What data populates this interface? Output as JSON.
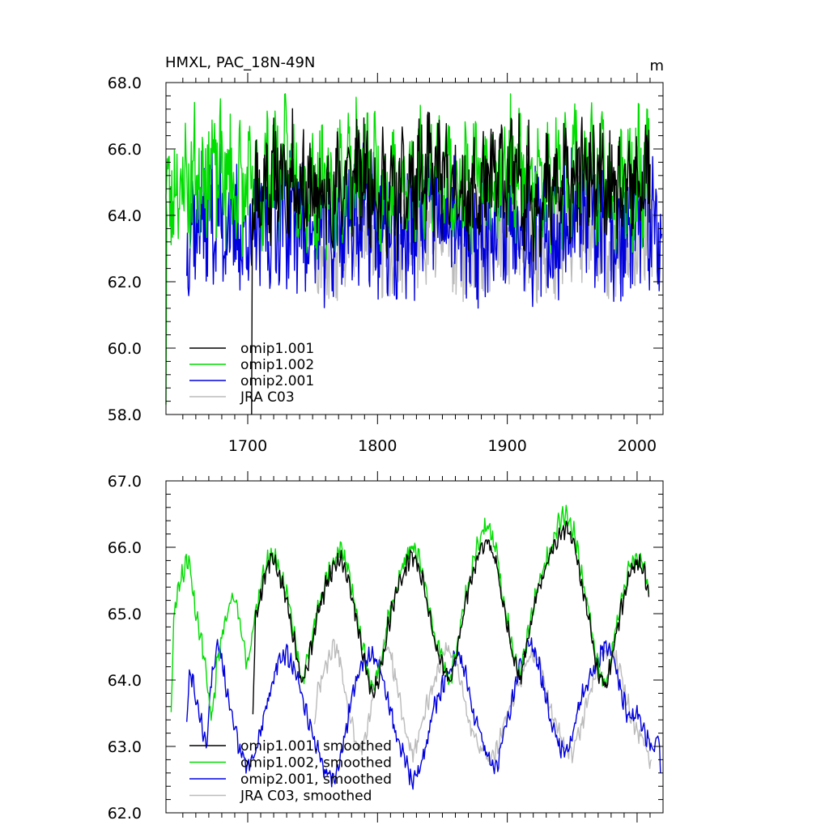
{
  "chart_data": [
    {
      "type": "line",
      "title": "HMXL, PAC_18N-49N",
      "units": "m",
      "xlabel": "",
      "ylabel": "",
      "xlim": [
        1637,
        2020
      ],
      "ylim": [
        58.0,
        68.0
      ],
      "x_ticks": [
        1700,
        1800,
        1900,
        2000
      ],
      "x_tick_labels": [
        "1700",
        "1800",
        "1900",
        "2000"
      ],
      "y_ticks": [
        58,
        60,
        62,
        64,
        66,
        68
      ],
      "y_tick_labels": [
        "58.0",
        "60.0",
        "62.0",
        "64.0",
        "66.0",
        "68.0"
      ],
      "legend_position": "bottom-left",
      "series": [
        {
          "name": "omip1.001",
          "color": "#000000",
          "x_start": 1704,
          "x_end": 2010,
          "base": 64.9,
          "amp": 1.1,
          "noise": 0.9,
          "seed": 11,
          "bottom_series": false,
          "spike": {
            "x": 1703,
            "from": 58.0,
            "to": 64.5
          }
        },
        {
          "name": "omip1.002",
          "color": "#00dd00",
          "x_start": 1637,
          "x_end": 2010,
          "base": 65.1,
          "amp": 1.2,
          "noise": 1.0,
          "seed": 23,
          "spike": {
            "x": 1637,
            "from": 58.3,
            "to": 64.0
          }
        },
        {
          "name": "omip2.001",
          "color": "#0000dd",
          "x_start": 1653,
          "x_end": 2019,
          "base": 63.7,
          "amp": 1.0,
          "noise": 1.1,
          "seed": 37,
          "spike": null
        },
        {
          "name": "JRA C03",
          "color": "#bbbbbb",
          "x_start": 1751,
          "x_end": 2012,
          "base": 63.4,
          "amp": 0.9,
          "noise": 0.9,
          "seed": 53,
          "spike": null
        }
      ]
    },
    {
      "type": "line",
      "title": "",
      "xlim": [
        1637,
        2020
      ],
      "ylim": [
        62.0,
        67.0
      ],
      "x_ticks": [
        1700,
        1800,
        1900,
        2000
      ],
      "y_ticks": [
        62,
        63,
        64,
        65,
        66,
        67
      ],
      "y_tick_labels": [
        "62.0",
        "63.0",
        "64.0",
        "65.0",
        "66.0",
        "67.0"
      ],
      "legend_position": "bottom-left",
      "series": [
        {
          "name": "omip1.001, smoothed",
          "color": "#000000",
          "x_start": 1704,
          "x_end": 2009,
          "points": [
            [
              1704,
              63.55
            ],
            [
              1706,
              64.9
            ],
            [
              1712,
              65.5
            ],
            [
              1718,
              65.85
            ],
            [
              1724,
              65.6
            ],
            [
              1730,
              65.2
            ],
            [
              1736,
              64.6
            ],
            [
              1742,
              63.95
            ],
            [
              1748,
              64.4
            ],
            [
              1754,
              65.0
            ],
            [
              1760,
              65.4
            ],
            [
              1766,
              65.7
            ],
            [
              1772,
              65.85
            ],
            [
              1778,
              65.5
            ],
            [
              1784,
              64.9
            ],
            [
              1790,
              64.3
            ],
            [
              1796,
              63.75
            ],
            [
              1802,
              64.1
            ],
            [
              1808,
              64.8
            ],
            [
              1814,
              65.3
            ],
            [
              1820,
              65.6
            ],
            [
              1826,
              65.9
            ],
            [
              1832,
              65.7
            ],
            [
              1838,
              65.2
            ],
            [
              1844,
              64.6
            ],
            [
              1850,
              64.2
            ],
            [
              1856,
              63.95
            ],
            [
              1862,
              64.5
            ],
            [
              1868,
              65.2
            ],
            [
              1874,
              65.7
            ],
            [
              1880,
              66.0
            ],
            [
              1886,
              66.1
            ],
            [
              1892,
              65.7
            ],
            [
              1898,
              65.0
            ],
            [
              1904,
              64.4
            ],
            [
              1910,
              64.0
            ],
            [
              1916,
              64.6
            ],
            [
              1922,
              65.2
            ],
            [
              1928,
              65.6
            ],
            [
              1934,
              65.9
            ],
            [
              1940,
              66.2
            ],
            [
              1946,
              66.3
            ],
            [
              1952,
              66.0
            ],
            [
              1958,
              65.4
            ],
            [
              1964,
              64.8
            ],
            [
              1970,
              64.1
            ],
            [
              1976,
              63.85
            ],
            [
              1982,
              64.5
            ],
            [
              1988,
              65.1
            ],
            [
              1994,
              65.6
            ],
            [
              2000,
              65.8
            ],
            [
              2006,
              65.6
            ],
            [
              2009,
              65.25
            ]
          ]
        },
        {
          "name": "omip1.002, smoothed",
          "color": "#00dd00",
          "x_start": 1641,
          "x_end": 2009,
          "points": [
            [
              1641,
              63.55
            ],
            [
              1643,
              64.9
            ],
            [
              1646,
              65.4
            ],
            [
              1650,
              65.6
            ],
            [
              1654,
              65.85
            ],
            [
              1658,
              65.3
            ],
            [
              1662,
              64.8
            ],
            [
              1666,
              64.4
            ],
            [
              1670,
              63.7
            ],
            [
              1673,
              63.45
            ],
            [
              1676,
              64.2
            ],
            [
              1680,
              64.7
            ],
            [
              1684,
              65.0
            ],
            [
              1688,
              65.3
            ],
            [
              1692,
              65.1
            ],
            [
              1696,
              64.6
            ],
            [
              1700,
              64.2
            ],
            [
              1706,
              64.95
            ],
            [
              1712,
              65.6
            ],
            [
              1718,
              65.95
            ],
            [
              1724,
              65.7
            ],
            [
              1730,
              65.3
            ],
            [
              1736,
              64.7
            ],
            [
              1742,
              64.0
            ],
            [
              1748,
              64.5
            ],
            [
              1754,
              65.1
            ],
            [
              1760,
              65.5
            ],
            [
              1766,
              65.8
            ],
            [
              1772,
              66.0
            ],
            [
              1778,
              65.6
            ],
            [
              1784,
              65.0
            ],
            [
              1790,
              64.4
            ],
            [
              1796,
              63.8
            ],
            [
              1802,
              64.2
            ],
            [
              1808,
              64.9
            ],
            [
              1814,
              65.4
            ],
            [
              1820,
              65.7
            ],
            [
              1826,
              66.05
            ],
            [
              1832,
              65.85
            ],
            [
              1838,
              65.3
            ],
            [
              1844,
              64.7
            ],
            [
              1850,
              64.3
            ],
            [
              1856,
              64.0
            ],
            [
              1862,
              64.6
            ],
            [
              1868,
              65.3
            ],
            [
              1874,
              65.8
            ],
            [
              1880,
              66.2
            ],
            [
              1886,
              66.35
            ],
            [
              1892,
              65.9
            ],
            [
              1898,
              65.1
            ],
            [
              1904,
              64.5
            ],
            [
              1910,
              64.05
            ],
            [
              1916,
              64.7
            ],
            [
              1922,
              65.3
            ],
            [
              1928,
              65.7
            ],
            [
              1934,
              66.0
            ],
            [
              1940,
              66.4
            ],
            [
              1946,
              66.5
            ],
            [
              1952,
              66.2
            ],
            [
              1958,
              65.5
            ],
            [
              1964,
              64.9
            ],
            [
              1970,
              64.2
            ],
            [
              1976,
              63.9
            ],
            [
              1982,
              64.6
            ],
            [
              1988,
              65.2
            ],
            [
              1994,
              65.7
            ],
            [
              2000,
              65.8
            ],
            [
              2006,
              65.7
            ],
            [
              2009,
              65.3
            ]
          ]
        },
        {
          "name": "omip2.001, smoothed",
          "color": "#0000dd",
          "x_start": 1653,
          "x_end": 2018,
          "points": [
            [
              1653,
              63.4
            ],
            [
              1655,
              64.2
            ],
            [
              1660,
              63.8
            ],
            [
              1665,
              63.3
            ],
            [
              1668,
              63.0
            ],
            [
              1672,
              64.0
            ],
            [
              1676,
              64.55
            ],
            [
              1680,
              64.3
            ],
            [
              1684,
              63.8
            ],
            [
              1688,
              63.4
            ],
            [
              1692,
              63.1
            ],
            [
              1696,
              62.9
            ],
            [
              1700,
              62.7
            ],
            [
              1706,
              62.9
            ],
            [
              1712,
              63.4
            ],
            [
              1718,
              63.9
            ],
            [
              1724,
              64.3
            ],
            [
              1730,
              64.4
            ],
            [
              1736,
              64.2
            ],
            [
              1742,
              63.7
            ],
            [
              1748,
              63.3
            ],
            [
              1754,
              63.0
            ],
            [
              1760,
              62.6
            ],
            [
              1766,
              62.5
            ],
            [
              1772,
              62.9
            ],
            [
              1778,
              63.5
            ],
            [
              1784,
              64.0
            ],
            [
              1790,
              64.3
            ],
            [
              1796,
              64.4
            ],
            [
              1802,
              64.2
            ],
            [
              1808,
              63.7
            ],
            [
              1814,
              63.2
            ],
            [
              1820,
              62.9
            ],
            [
              1826,
              62.5
            ],
            [
              1832,
              62.6
            ],
            [
              1838,
              63.1
            ],
            [
              1844,
              63.6
            ],
            [
              1850,
              63.9
            ],
            [
              1856,
              64.2
            ],
            [
              1862,
              64.4
            ],
            [
              1868,
              64.1
            ],
            [
              1874,
              63.5
            ],
            [
              1880,
              63.1
            ],
            [
              1886,
              62.8
            ],
            [
              1892,
              62.7
            ],
            [
              1898,
              63.2
            ],
            [
              1904,
              63.7
            ],
            [
              1910,
              64.2
            ],
            [
              1916,
              64.5
            ],
            [
              1922,
              64.4
            ],
            [
              1928,
              63.9
            ],
            [
              1934,
              63.4
            ],
            [
              1940,
              63.0
            ],
            [
              1946,
              62.9
            ],
            [
              1952,
              63.3
            ],
            [
              1958,
              63.8
            ],
            [
              1964,
              64.1
            ],
            [
              1970,
              64.3
            ],
            [
              1976,
              64.55
            ],
            [
              1982,
              64.3
            ],
            [
              1988,
              63.8
            ],
            [
              1994,
              63.4
            ],
            [
              2000,
              63.5
            ],
            [
              2006,
              63.2
            ],
            [
              2012,
              62.9
            ],
            [
              2016,
              63.3
            ],
            [
              2018,
              62.6
            ]
          ]
        },
        {
          "name": "JRA C03, smoothed",
          "color": "#bbbbbb",
          "x_start": 1751,
          "x_end": 2011,
          "points": [
            [
              1751,
              63.3
            ],
            [
              1754,
              63.8
            ],
            [
              1758,
              64.1
            ],
            [
              1762,
              64.3
            ],
            [
              1766,
              64.55
            ],
            [
              1770,
              64.4
            ],
            [
              1774,
              63.9
            ],
            [
              1778,
              63.5
            ],
            [
              1782,
              63.2
            ],
            [
              1786,
              62.9
            ],
            [
              1790,
              63.1
            ],
            [
              1794,
              63.5
            ],
            [
              1798,
              63.9
            ],
            [
              1802,
              64.3
            ],
            [
              1806,
              64.55
            ],
            [
              1810,
              64.4
            ],
            [
              1814,
              64.0
            ],
            [
              1818,
              63.6
            ],
            [
              1822,
              63.2
            ],
            [
              1826,
              62.9
            ],
            [
              1830,
              63.0
            ],
            [
              1836,
              63.5
            ],
            [
              1842,
              63.9
            ],
            [
              1848,
              64.2
            ],
            [
              1854,
              64.5
            ],
            [
              1860,
              64.3
            ],
            [
              1866,
              63.8
            ],
            [
              1872,
              63.3
            ],
            [
              1878,
              63.0
            ],
            [
              1884,
              62.8
            ],
            [
              1890,
              62.9
            ],
            [
              1896,
              63.2
            ],
            [
              1902,
              63.6
            ],
            [
              1908,
              63.9
            ],
            [
              1914,
              64.2
            ],
            [
              1920,
              64.4
            ],
            [
              1926,
              64.2
            ],
            [
              1932,
              63.7
            ],
            [
              1938,
              63.3
            ],
            [
              1944,
              63.0
            ],
            [
              1950,
              62.9
            ],
            [
              1956,
              63.2
            ],
            [
              1962,
              63.7
            ],
            [
              1968,
              64.1
            ],
            [
              1974,
              64.4
            ],
            [
              1980,
              64.5
            ],
            [
              1986,
              64.2
            ],
            [
              1992,
              63.7
            ],
            [
              1998,
              63.3
            ],
            [
              2004,
              63.1
            ],
            [
              2008,
              62.9
            ],
            [
              2011,
              62.8
            ]
          ]
        }
      ]
    }
  ]
}
